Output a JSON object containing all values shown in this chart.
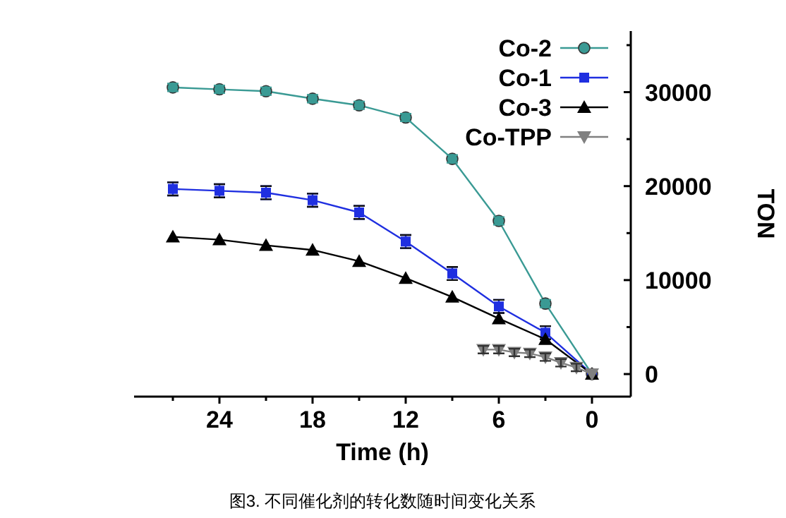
{
  "chart_data": {
    "type": "line",
    "xlabel": "Time (h)",
    "ylabel": "TON",
    "annotations": [
      "图3. 不同催化剂的转化数随时间变化关系"
    ],
    "xlim": [
      29.5,
      -2.5
    ],
    "xticks": [
      0,
      {
        "value": 3,
        "label": null
      },
      6,
      {
        "value": 9,
        "label": null
      },
      12,
      {
        "value": 15,
        "label": null
      },
      18,
      {
        "value": 21,
        "label": null
      },
      24,
      {
        "value": 27,
        "label": null
      }
    ],
    "ylim": [
      -2400,
      36500
    ],
    "yticks": [
      0,
      {
        "value": 5000,
        "label": null
      },
      10000,
      {
        "value": 15000,
        "label": null
      },
      20000,
      {
        "value": 25000,
        "label": null
      },
      30000,
      {
        "value": 35000,
        "label": null
      }
    ],
    "legend": "top right",
    "line_style": "solid",
    "series": [
      {
        "name": "Co-2",
        "color": "#3a9a94",
        "marker": "circle",
        "x": [
          27,
          24,
          21,
          18,
          15,
          12,
          9,
          6,
          3,
          0
        ],
        "values": [
          30500,
          30300,
          30100,
          29300,
          28600,
          27300,
          22900,
          16300,
          7500,
          0
        ],
        "errors": [
          400,
          400,
          400,
          400,
          400,
          400,
          400,
          400,
          400,
          null
        ]
      },
      {
        "name": "Co-1",
        "color": "#1f2fe0",
        "marker": "square",
        "x": [
          27,
          24,
          21,
          18,
          15,
          12,
          9,
          6,
          3,
          0
        ],
        "values": [
          19700,
          19500,
          19300,
          18500,
          17200,
          14100,
          10700,
          7200,
          4400,
          0
        ],
        "errors": [
          700,
          700,
          700,
          700,
          700,
          700,
          700,
          700,
          700,
          null
        ]
      },
      {
        "name": "Co-3",
        "color": "#000000",
        "marker": "triangle",
        "x": [
          27,
          24,
          21,
          18,
          15,
          12,
          9,
          6,
          3,
          0
        ],
        "values": [
          14600,
          14300,
          13700,
          13200,
          12000,
          10200,
          8200,
          5900,
          3700,
          0
        ],
        "errors": [
          400,
          400,
          400,
          400,
          400,
          400,
          400,
          400,
          400,
          null
        ]
      },
      {
        "name": "Co-TPP",
        "color": "#808080",
        "marker": "triangle-down",
        "x": [
          7,
          6,
          5,
          4,
          3,
          2,
          1,
          0
        ],
        "values": [
          2600,
          2600,
          2300,
          2200,
          1800,
          1200,
          700,
          0
        ],
        "errors": [
          400,
          400,
          400,
          400,
          400,
          400,
          400,
          null
        ]
      }
    ]
  }
}
